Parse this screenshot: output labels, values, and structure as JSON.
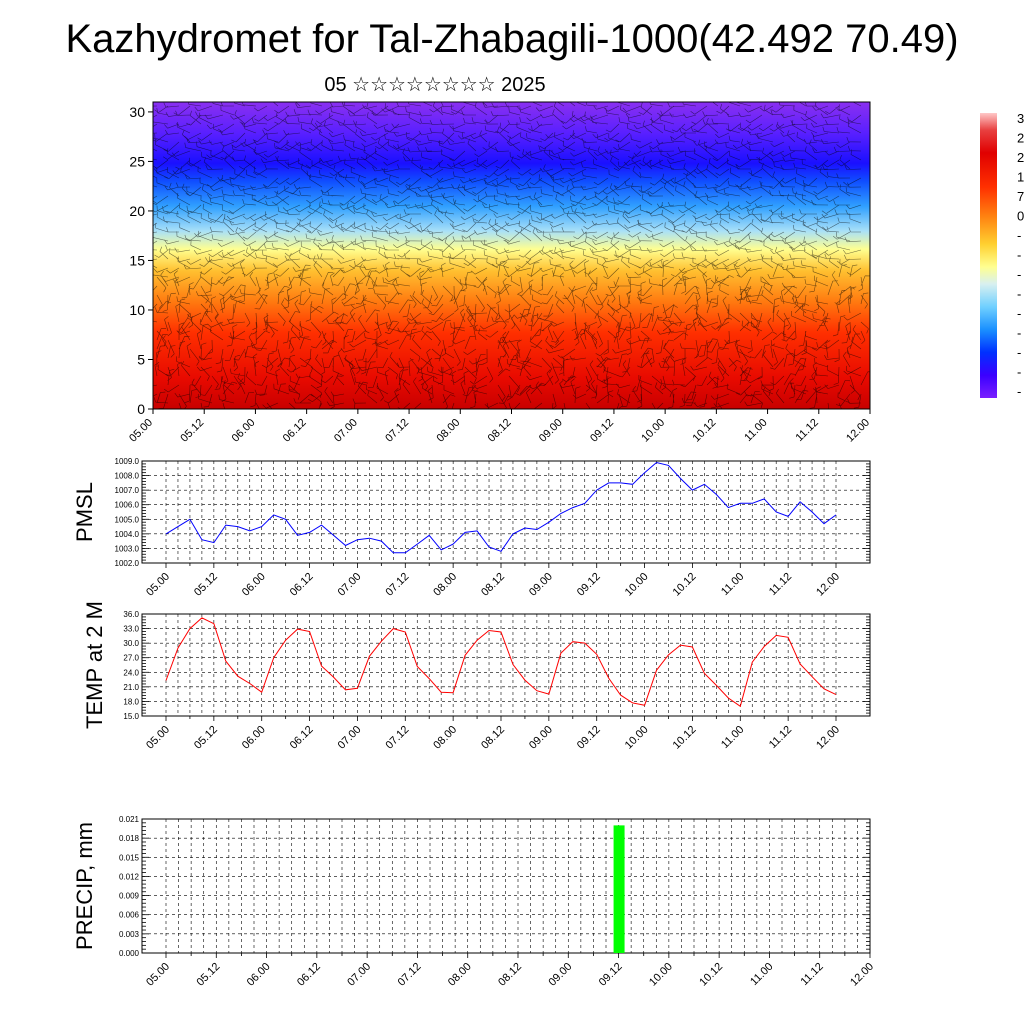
{
  "header": {
    "title": "Kazhydromet for Tal-Zhabagili-1000(42.492 70.49)",
    "subtitle": "05 ☆☆☆☆☆☆☆☆ 2025"
  },
  "colors": {
    "pmsl_line": "#0000ff",
    "temp_line": "#ff0000",
    "precip_bar": "#00ff00",
    "colorbar": [
      "#7a1fff",
      "#4a00ff",
      "#1a00ff",
      "#0030ff",
      "#1a80ff",
      "#2aa8ff",
      "#70d0ff",
      "#c8e8f0",
      "#ffffa0",
      "#ffe030",
      "#ffb020",
      "#ff8010",
      "#ff4000",
      "#ff1000",
      "#e80000",
      "#f04040",
      "#ffc0c0"
    ]
  },
  "chart_data": [
    {
      "type": "heatmap",
      "title": "",
      "xlabel": "",
      "ylabel": "",
      "ylim": [
        0,
        31
      ],
      "x_ticks": [
        "05.00",
        "05.12",
        "06.00",
        "06.12",
        "07.00",
        "07.12",
        "08.00",
        "08.12",
        "09.00",
        "09.12",
        "10.00",
        "10.12",
        "11.00",
        "11.12",
        "12.00"
      ],
      "y_ticks": [
        "0",
        "5",
        "10",
        "15",
        "20",
        "25",
        "30"
      ],
      "colorbar_labels": [
        "3",
        "2",
        "2",
        "1",
        "7",
        "0",
        "-",
        "-",
        "-",
        "-",
        "-",
        "-",
        "-",
        "-",
        "-"
      ],
      "overlay": "wind barbs"
    },
    {
      "type": "line",
      "ylabel": "PMSL",
      "ylim": [
        1002.0,
        1009.0
      ],
      "y_ticks": [
        "1009.0",
        "1008.0",
        "1007.0",
        "1006.0",
        "1005.0",
        "1004.0",
        "1003.0",
        "1002.0"
      ],
      "x_ticks": [
        "05.00",
        "05.12",
        "06.00",
        "06.12",
        "07.00",
        "07.12",
        "08.00",
        "08.12",
        "09.00",
        "09.12",
        "10.00",
        "10.12",
        "11.00",
        "11.12",
        "12.00"
      ],
      "grid": true,
      "series": [
        {
          "values": [
            1004.0,
            1004.5,
            1005.0,
            1003.6,
            1003.4,
            1004.6,
            1004.5,
            1004.2,
            1004.5,
            1005.3,
            1005.0,
            1003.9,
            1004.1,
            1004.6,
            1003.9,
            1003.2,
            1003.6,
            1003.7,
            1003.5,
            1002.7,
            1002.7,
            1003.3,
            1003.9,
            1002.9,
            1003.3,
            1004.1,
            1004.2,
            1003.1,
            1002.8,
            1004.0,
            1004.4,
            1004.3,
            1004.8,
            1005.4,
            1005.8,
            1006.1,
            1007.0,
            1007.5,
            1007.5,
            1007.4,
            1008.2,
            1008.9,
            1008.7,
            1007.8,
            1007.0,
            1007.4,
            1006.7,
            1005.8,
            1006.1,
            1006.1,
            1006.4,
            1005.5,
            1005.2,
            1006.2,
            1005.5,
            1004.7,
            1005.3
          ]
        }
      ]
    },
    {
      "type": "line",
      "ylabel": "TEMP at 2 M",
      "ylim": [
        15.0,
        36.0
      ],
      "y_ticks": [
        "36.0",
        "33.0",
        "30.0",
        "27.0",
        "24.0",
        "21.0",
        "18.0",
        "15.0"
      ],
      "x_ticks": [
        "05.00",
        "05.12",
        "06.00",
        "06.12",
        "07.00",
        "07.12",
        "08.00",
        "08.12",
        "09.00",
        "09.12",
        "10.00",
        "10.12",
        "11.00",
        "11.12",
        "12.00"
      ],
      "grid": true,
      "series": [
        {
          "values": [
            22.3,
            29.0,
            33.0,
            35.2,
            34.0,
            26.3,
            23.2,
            21.7,
            19.9,
            27.0,
            30.6,
            32.9,
            32.4,
            25.3,
            23.0,
            20.4,
            20.7,
            27.3,
            30.4,
            33.0,
            32.3,
            25.2,
            22.7,
            19.9,
            19.8,
            27.5,
            30.6,
            32.6,
            32.3,
            25.6,
            22.4,
            20.2,
            19.5,
            27.9,
            30.3,
            30.0,
            27.7,
            22.8,
            19.3,
            17.7,
            17.2,
            24.4,
            27.6,
            29.6,
            29.2,
            23.8,
            21.3,
            18.7,
            17.0,
            26.1,
            29.3,
            31.6,
            31.2,
            25.7,
            23.1,
            20.6,
            19.4
          ]
        }
      ]
    },
    {
      "type": "bar",
      "ylabel": "PRECIP, mm",
      "ylim": [
        0.0,
        0.021
      ],
      "y_ticks": [
        "0.021",
        "0.018",
        "0.015",
        "0.012",
        "0.009",
        "0.006",
        "0.003",
        "0.000"
      ],
      "x_ticks": [
        "05.00",
        "05.12",
        "06.00",
        "06.12",
        "07.00",
        "07.12",
        "08.00",
        "08.12",
        "09.00",
        "09.12",
        "10.00",
        "10.12",
        "11.00",
        "11.12",
        "12.00"
      ],
      "grid": true,
      "bars": [
        {
          "x": "09.12",
          "value": 0.02
        }
      ]
    }
  ]
}
